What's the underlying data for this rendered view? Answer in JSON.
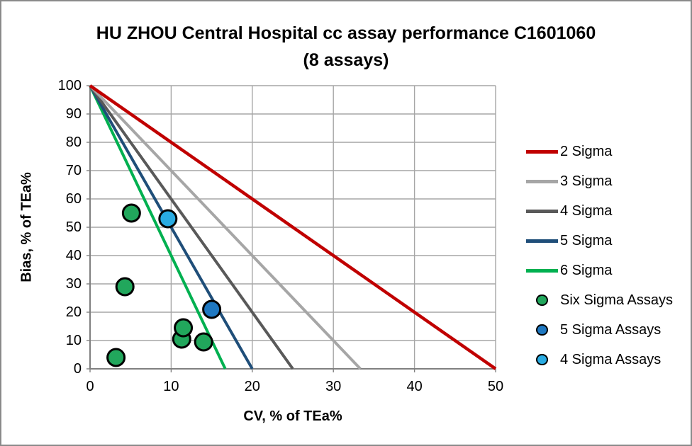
{
  "title": "HU ZHOU Central Hospital cc assay performance C1601060",
  "subtitle": "(8 assays)",
  "chart_data": {
    "type": "scatter",
    "title": "HU ZHOU Central Hospital cc assay performance C1601060 (8 assays)",
    "xlabel": "CV, % of TEa%",
    "ylabel": "Bias, % of TEa%",
    "xlim": [
      0,
      50
    ],
    "ylim": [
      0,
      100
    ],
    "xticks": [
      0,
      10,
      20,
      30,
      40,
      50
    ],
    "yticks": [
      0,
      10,
      20,
      30,
      40,
      50,
      60,
      70,
      80,
      90,
      100
    ],
    "grid": true,
    "legend_position": "right",
    "colors": {
      "grid": "#A6A6A6",
      "axis": "#808080",
      "text": "#000000"
    },
    "lines": [
      {
        "name": "2 Sigma",
        "color": "#C00000",
        "width": 4.5,
        "points": [
          [
            0,
            100
          ],
          [
            50,
            0
          ]
        ]
      },
      {
        "name": "3 Sigma",
        "color": "#A6A6A6",
        "width": 4,
        "points": [
          [
            0,
            100
          ],
          [
            33.33,
            0
          ]
        ]
      },
      {
        "name": "4 Sigma",
        "color": "#595959",
        "width": 4,
        "points": [
          [
            0,
            100
          ],
          [
            25,
            0
          ]
        ]
      },
      {
        "name": "5 Sigma",
        "color": "#1F4E79",
        "width": 4,
        "points": [
          [
            0,
            100
          ],
          [
            20,
            0
          ]
        ]
      },
      {
        "name": "6 Sigma",
        "color": "#00B050",
        "width": 4,
        "points": [
          [
            0,
            100
          ],
          [
            16.67,
            0
          ]
        ]
      }
    ],
    "scatter_series": [
      {
        "name": "Six Sigma Assays",
        "color": "#21A75C",
        "points": [
          [
            3.2,
            4
          ],
          [
            4.3,
            29
          ],
          [
            5.1,
            55
          ],
          [
            11.3,
            10.5
          ],
          [
            11.5,
            14.5
          ],
          [
            14,
            9.5
          ]
        ]
      },
      {
        "name": "5 Sigma Assays",
        "color": "#1F78C1",
        "points": [
          [
            15,
            21
          ]
        ]
      },
      {
        "name": "4 Sigma Assays",
        "color": "#29ABE2",
        "points": [
          [
            9.6,
            53
          ]
        ]
      }
    ],
    "legend": [
      {
        "label": "2 Sigma",
        "swatch": "line",
        "color": "#C00000"
      },
      {
        "label": "3 Sigma",
        "swatch": "line",
        "color": "#A6A6A6"
      },
      {
        "label": "4 Sigma",
        "swatch": "line",
        "color": "#595959"
      },
      {
        "label": "5 Sigma",
        "swatch": "line",
        "color": "#1F4E79"
      },
      {
        "label": "6 Sigma",
        "swatch": "line",
        "color": "#00B050"
      },
      {
        "label": "Six Sigma Assays",
        "swatch": "marker",
        "color": "#21A75C"
      },
      {
        "label": "5 Sigma Assays",
        "swatch": "marker",
        "color": "#1F78C1"
      },
      {
        "label": "4 Sigma Assays",
        "swatch": "marker",
        "color": "#29ABE2"
      }
    ]
  }
}
